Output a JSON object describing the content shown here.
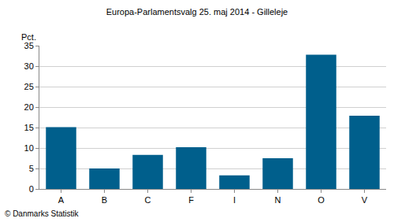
{
  "chart_data": {
    "type": "bar",
    "title": "Europa-Parlamentsvalg 25. maj 2014 - Gilleleje",
    "ylabel": "Pct.",
    "annotations": [
      "© Danmarks Statistik"
    ],
    "categories": [
      "A",
      "B",
      "C",
      "F",
      "I",
      "N",
      "O",
      "V"
    ],
    "values": [
      15.1,
      5.0,
      8.3,
      10.2,
      3.3,
      7.5,
      32.8,
      17.9
    ],
    "color": "#005f8c",
    "ylim": [
      0,
      35
    ],
    "yticks": [
      0,
      5,
      10,
      15,
      20,
      25,
      30,
      35
    ],
    "grid": true
  }
}
